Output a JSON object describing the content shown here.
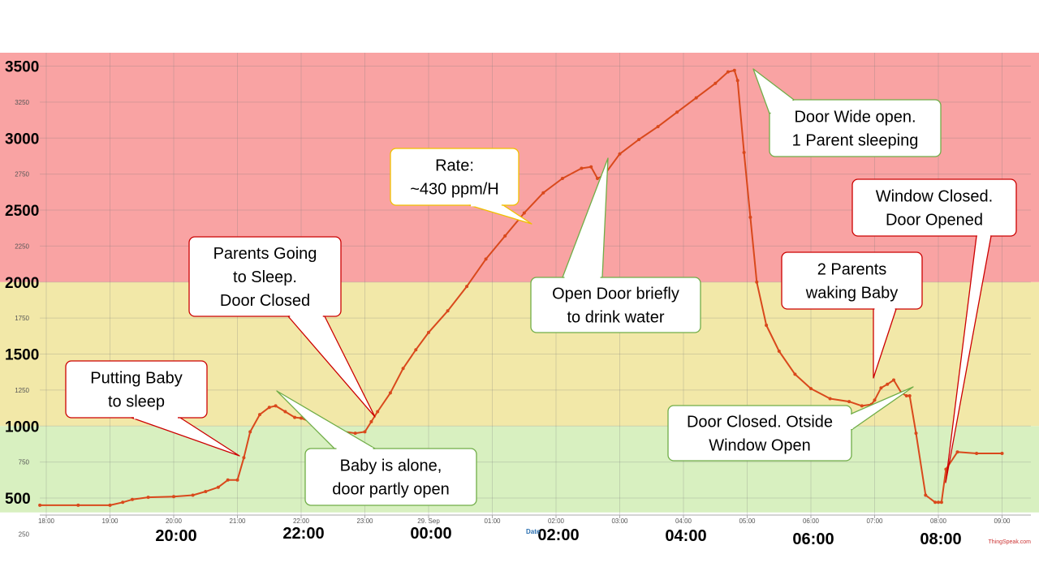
{
  "chart_data": {
    "type": "line",
    "xlabel": "Date",
    "ylim": [
      250,
      3600
    ],
    "credit": "ThingSpeak.com",
    "line_color": "#d9491c",
    "bands": [
      {
        "from": 400,
        "to": 1000,
        "color": "#d8f0c0"
      },
      {
        "from": 1000,
        "to": 2000,
        "color": "#f2e8a8"
      },
      {
        "from": 2000,
        "to": 3600,
        "color": "#f9a3a3"
      }
    ],
    "small_y_ticks": [
      "250",
      "750",
      "1250",
      "1750",
      "2250",
      "2750",
      "3250"
    ],
    "big_y_ticks": [
      "500",
      "1000",
      "1500",
      "2000",
      "2500",
      "3000",
      "3500"
    ],
    "small_x_ticks": [
      "18:00",
      "19:00",
      "20:00",
      "21:00",
      "22:00",
      "23:00",
      "29. Sep",
      "01:00",
      "02:00",
      "03:00",
      "04:00",
      "05:00",
      "06:00",
      "07:00",
      "08:00",
      "09:00"
    ],
    "big_x_ticks": [
      {
        "h": 20,
        "label": "20:00"
      },
      {
        "h": 22,
        "label": "22:00"
      },
      {
        "h": 24,
        "label": "00:00"
      },
      {
        "h": 26,
        "label": "02:00"
      },
      {
        "h": 28,
        "label": "04:00"
      },
      {
        "h": 30,
        "label": "06:00"
      },
      {
        "h": 32,
        "label": "08:00"
      }
    ],
    "x_hours": [
      17.9,
      18.5,
      19.0,
      19.2,
      19.35,
      19.6,
      20.0,
      20.3,
      20.5,
      20.7,
      20.85,
      21.0,
      21.1,
      21.2,
      21.35,
      21.5,
      21.6,
      21.75,
      21.9,
      22.0,
      22.2,
      22.4,
      22.6,
      22.85,
      23.0,
      23.1,
      23.2,
      23.4,
      23.6,
      23.8,
      24.0,
      24.3,
      24.6,
      24.9,
      25.2,
      25.5,
      25.8,
      26.1,
      26.4,
      26.55,
      26.65,
      26.75,
      27.0,
      27.3,
      27.6,
      27.9,
      28.2,
      28.5,
      28.7,
      28.8,
      28.85,
      28.95,
      29.05,
      29.15,
      29.3,
      29.5,
      29.75,
      30.0,
      30.3,
      30.6,
      30.8,
      30.95,
      31.0,
      31.1,
      31.2,
      31.3,
      31.42,
      31.5,
      31.55,
      31.65,
      31.8,
      31.95,
      32.0,
      32.05,
      32.12,
      32.3,
      32.6,
      33.0
    ],
    "y_values": [
      450,
      450,
      450,
      470,
      490,
      505,
      510,
      520,
      545,
      575,
      625,
      625,
      780,
      960,
      1080,
      1130,
      1140,
      1100,
      1060,
      1055,
      1020,
      980,
      965,
      950,
      960,
      1030,
      1100,
      1230,
      1400,
      1530,
      1650,
      1800,
      1970,
      2160,
      2320,
      2480,
      2620,
      2720,
      2790,
      2800,
      2720,
      2740,
      2890,
      2990,
      3080,
      3180,
      3280,
      3380,
      3460,
      3470,
      3400,
      2900,
      2450,
      2000,
      1700,
      1520,
      1360,
      1260,
      1190,
      1170,
      1140,
      1150,
      1180,
      1265,
      1290,
      1320,
      1230,
      1210,
      1210,
      950,
      520,
      470,
      470,
      470,
      700,
      820,
      810,
      810
    ],
    "callouts": [
      {
        "lines": [
          "Putting Baby",
          "to sleep"
        ],
        "border": "#cc0000"
      },
      {
        "lines": [
          "Parents Going",
          "to Sleep.",
          "Door Closed"
        ],
        "border": "#cc0000"
      },
      {
        "lines": [
          "Baby is alone,",
          "door partly open"
        ],
        "border": "#70ad47"
      },
      {
        "lines": [
          "Rate:",
          "~430 ppm/H"
        ],
        "border": "#f0c000"
      },
      {
        "lines": [
          "Open Door briefly",
          "to drink water"
        ],
        "border": "#70ad47"
      },
      {
        "lines": [
          "Door Wide open.",
          "1 Parent sleeping"
        ],
        "border": "#70ad47"
      },
      {
        "lines": [
          "Window Closed.",
          "Door Opened"
        ],
        "border": "#cc0000"
      },
      {
        "lines": [
          "2 Parents",
          "waking Baby"
        ],
        "border": "#cc0000"
      },
      {
        "lines": [
          "Door Closed. Otside",
          "Window Open"
        ],
        "border": "#70ad47"
      }
    ]
  }
}
